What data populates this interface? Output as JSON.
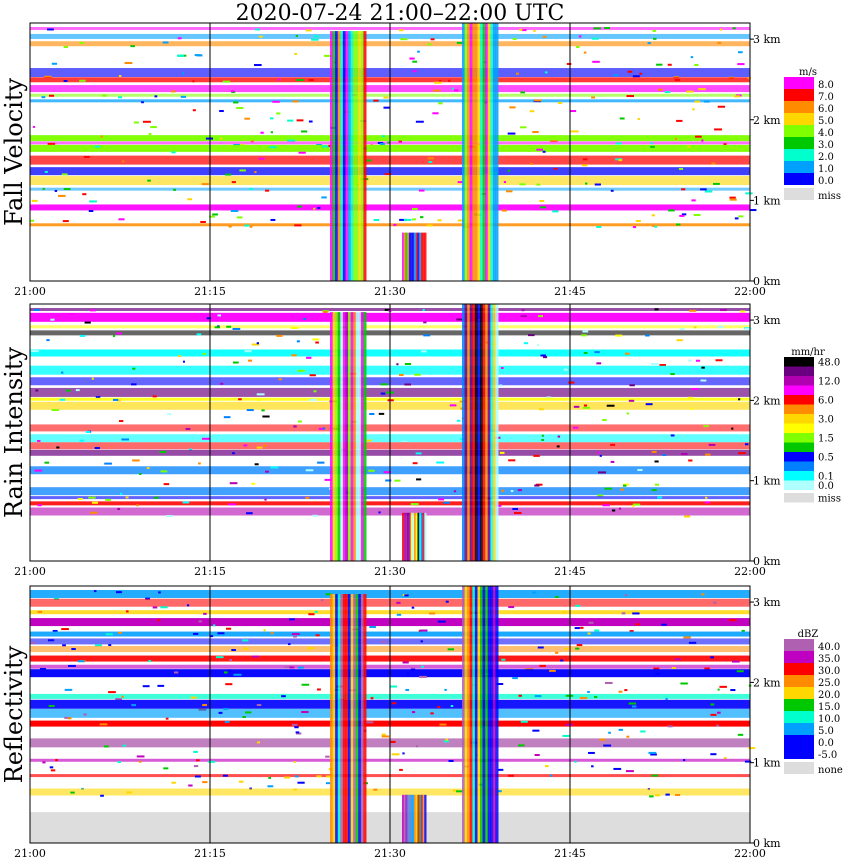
{
  "title": "2020-07-24   21:00–22:00 UTC",
  "chart_data": [
    {
      "type": "heatmap",
      "ylabel": "Fall Velocity",
      "unit": "m/s",
      "x_ticks": [
        "21:00",
        "21:15",
        "21:30",
        "21:45",
        "22:00"
      ],
      "y_ticks": [
        "0 km",
        "1 km",
        "2 km",
        "3 km"
      ],
      "ylim_km": [
        0,
        3.2
      ],
      "grid": true,
      "legend_placement": "right",
      "scale": [
        {
          "label": "8.0",
          "color": "#ff00ff"
        },
        {
          "label": "7.0",
          "color": "#ff0000"
        },
        {
          "label": "6.0",
          "color": "#ff8c00"
        },
        {
          "label": "5.0",
          "color": "#ffd700"
        },
        {
          "label": "4.0",
          "color": "#7fff00"
        },
        {
          "label": "3.0",
          "color": "#00c800"
        },
        {
          "label": "2.0",
          "color": "#00ffcc"
        },
        {
          "label": "1.0",
          "color": "#00a0ff"
        },
        {
          "label": "0.0",
          "color": "#0000ff"
        },
        {
          "label": "miss",
          "color": "#dddddd"
        }
      ],
      "rain_events": [
        {
          "start": "21:25",
          "end": "21:28",
          "top_km": 3.1,
          "bottom_km": 0.0
        },
        {
          "start": "21:31",
          "end": "21:33",
          "top_km": 0.6,
          "bottom_km": 0.0
        },
        {
          "start": "21:36",
          "end": "21:39",
          "top_km": 3.2,
          "bottom_km": 0.0
        }
      ]
    },
    {
      "type": "heatmap",
      "ylabel": "Rain Intensity",
      "unit": "mm/hr",
      "x_ticks": [
        "21:00",
        "21:15",
        "21:30",
        "21:45",
        "22:00"
      ],
      "y_ticks": [
        "0 km",
        "1 km",
        "2 km",
        "3 km"
      ],
      "ylim_km": [
        0,
        3.2
      ],
      "grid": true,
      "legend_placement": "right",
      "scale": [
        {
          "label": "48.0",
          "color": "#000000"
        },
        {
          "label": "",
          "color": "#6a0080"
        },
        {
          "label": "12.0",
          "color": "#b000b0"
        },
        {
          "label": "",
          "color": "#ff00ff"
        },
        {
          "label": "6.0",
          "color": "#ff0000"
        },
        {
          "label": "",
          "color": "#ff8c00"
        },
        {
          "label": "3.0",
          "color": "#ffd700"
        },
        {
          "label": "",
          "color": "#ffff00"
        },
        {
          "label": "1.5",
          "color": "#7fff00"
        },
        {
          "label": "",
          "color": "#00c800"
        },
        {
          "label": "0.5",
          "color": "#0000ff"
        },
        {
          "label": "",
          "color": "#0080ff"
        },
        {
          "label": "0.1",
          "color": "#00ffff"
        },
        {
          "label": "0.0",
          "color": "#b0ffff"
        },
        {
          "label": "miss",
          "color": "#dddddd"
        }
      ],
      "rain_events": [
        {
          "start": "21:25",
          "end": "21:28",
          "top_km": 3.1,
          "bottom_km": 0.0
        },
        {
          "start": "21:31",
          "end": "21:33",
          "top_km": 0.6,
          "bottom_km": 0.0
        },
        {
          "start": "21:36",
          "end": "21:39",
          "top_km": 3.2,
          "bottom_km": 0.0
        }
      ]
    },
    {
      "type": "heatmap",
      "ylabel": "Reflectivity",
      "unit": "dBZ",
      "x_ticks": [
        "21:00",
        "21:15",
        "21:30",
        "21:45",
        "22:00"
      ],
      "y_ticks": [
        "0 km",
        "1 km",
        "2 km",
        "3 km"
      ],
      "ylim_km": [
        0,
        3.2
      ],
      "grid": true,
      "legend_placement": "right",
      "scale": [
        {
          "label": "40.0",
          "color": "#b060b0"
        },
        {
          "label": "35.0",
          "color": "#c000c0"
        },
        {
          "label": "30.0",
          "color": "#ff0000"
        },
        {
          "label": "25.0",
          "color": "#ff8c00"
        },
        {
          "label": "20.0",
          "color": "#ffd700"
        },
        {
          "label": "15.0",
          "color": "#00c800"
        },
        {
          "label": "10.0",
          "color": "#00ffcc"
        },
        {
          "label": "5.0",
          "color": "#00a0ff"
        },
        {
          "label": "0.0",
          "color": "#0000ff"
        },
        {
          "label": "-5.0",
          "color": "#0000ff"
        },
        {
          "label": "none",
          "color": "#dddddd"
        }
      ],
      "rain_events": [
        {
          "start": "21:25",
          "end": "21:28",
          "top_km": 3.1,
          "bottom_km": 0.0
        },
        {
          "start": "21:31",
          "end": "21:33",
          "top_km": 0.6,
          "bottom_km": 0.0
        },
        {
          "start": "21:36",
          "end": "21:39",
          "top_km": 3.2,
          "bottom_km": 0.0
        }
      ]
    }
  ]
}
